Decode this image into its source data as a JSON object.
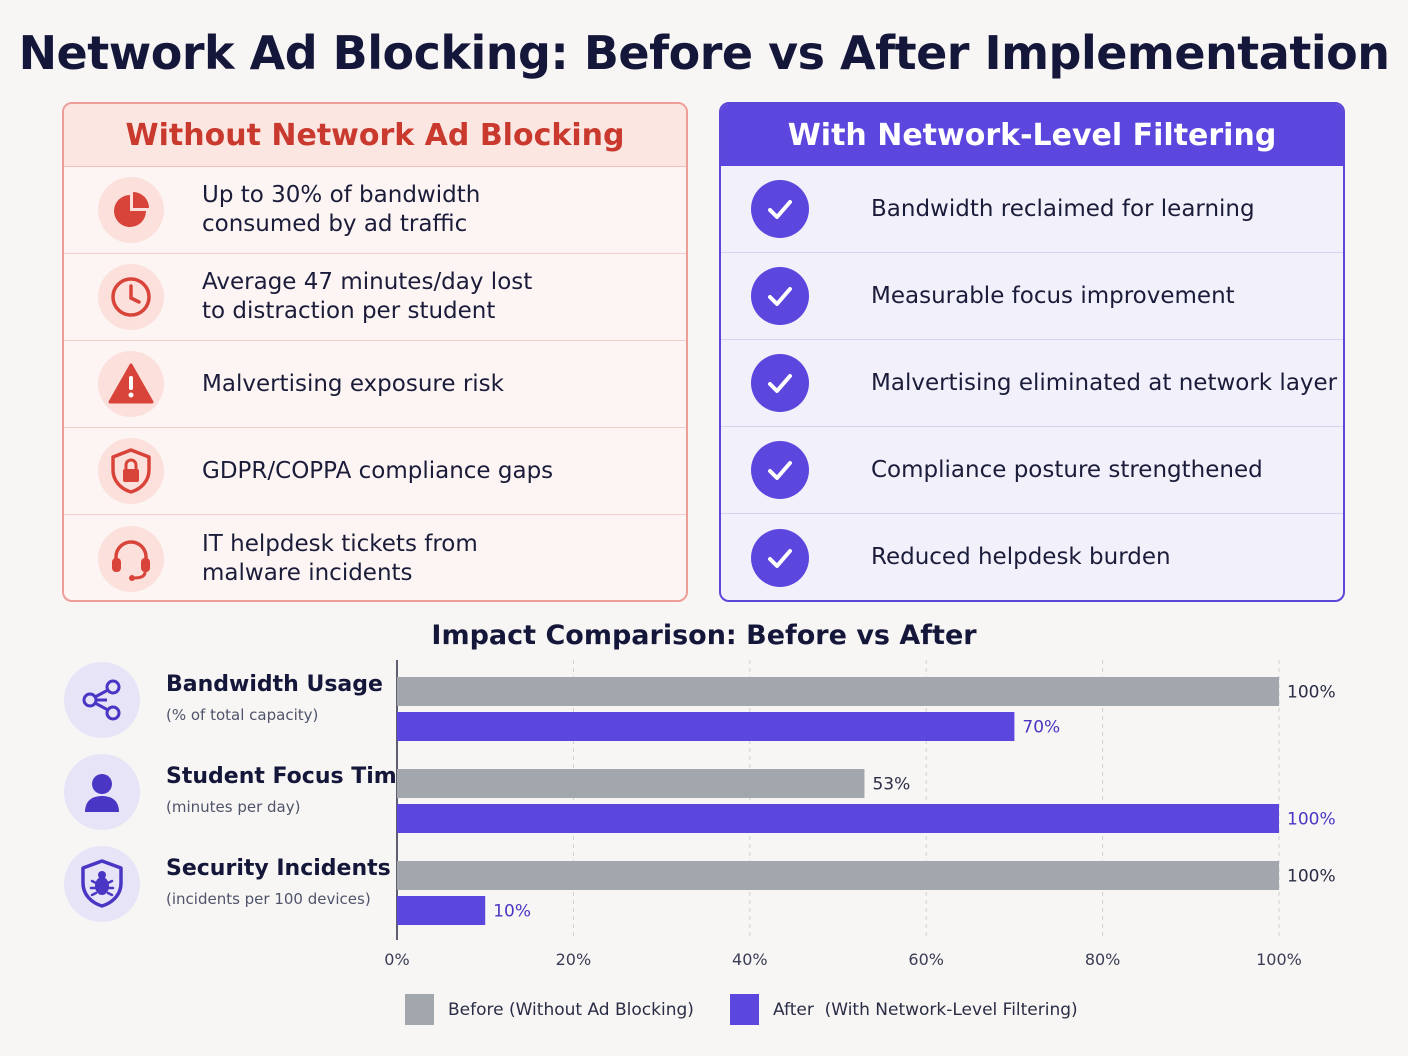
{
  "title": "Network Ad Blocking: Before vs After Implementation",
  "colors": {
    "before": "#a2a6ad",
    "after": "#5b46de",
    "left_accent": "#d9443a",
    "right_accent": "#5b46de"
  },
  "left_panel": {
    "heading": "Without Network Ad Blocking",
    "items": [
      {
        "icon": "pie-chart-icon",
        "text": "Up to 30% of bandwidth\nconsumed by ad traffic"
      },
      {
        "icon": "clock-icon",
        "text": "Average 47 minutes/day lost\nto distraction per student"
      },
      {
        "icon": "warning-icon",
        "text": "Malvertising exposure risk"
      },
      {
        "icon": "shield-lock-icon",
        "text": "GDPR/COPPA compliance gaps"
      },
      {
        "icon": "headset-icon",
        "text": "IT helpdesk tickets from\nmalware incidents"
      }
    ]
  },
  "right_panel": {
    "heading": "With Network-Level Filtering",
    "items": [
      {
        "icon": "check-icon",
        "text": "Bandwidth reclaimed for learning"
      },
      {
        "icon": "check-icon",
        "text": "Measurable focus improvement"
      },
      {
        "icon": "check-icon",
        "text": "Malvertising eliminated at network layer"
      },
      {
        "icon": "check-icon",
        "text": "Compliance posture strengthened"
      },
      {
        "icon": "check-icon",
        "text": "Reduced helpdesk burden"
      }
    ]
  },
  "metrics": [
    {
      "icon": "share-network-icon",
      "label": "Bandwidth Usage",
      "sub": "(% of total capacity)"
    },
    {
      "icon": "user-icon",
      "label": "Student Focus Time",
      "sub": "(minutes per day)"
    },
    {
      "icon": "shield-bug-icon",
      "label": "Security Incidents",
      "sub": "(incidents per 100 devices)"
    }
  ],
  "chart_data": {
    "type": "bar",
    "orientation": "horizontal",
    "title": "Impact Comparison: Before vs After",
    "categories": [
      "Bandwidth Usage",
      "Student Focus Time",
      "Security Incidents"
    ],
    "series": [
      {
        "name": "Before (Without Ad Blocking)",
        "values": [
          100,
          53,
          100
        ],
        "labels": [
          "100%",
          "53%",
          "100%"
        ]
      },
      {
        "name": "After  (With Network-Level Filtering)",
        "values": [
          70,
          100,
          10
        ],
        "labels": [
          "70%",
          "100%",
          "10%"
        ]
      }
    ],
    "xlim": [
      0,
      100
    ],
    "x_ticks": [
      "0%",
      "20%",
      "40%",
      "60%",
      "80%",
      "100%"
    ],
    "grid": true,
    "legend": "bottom"
  }
}
